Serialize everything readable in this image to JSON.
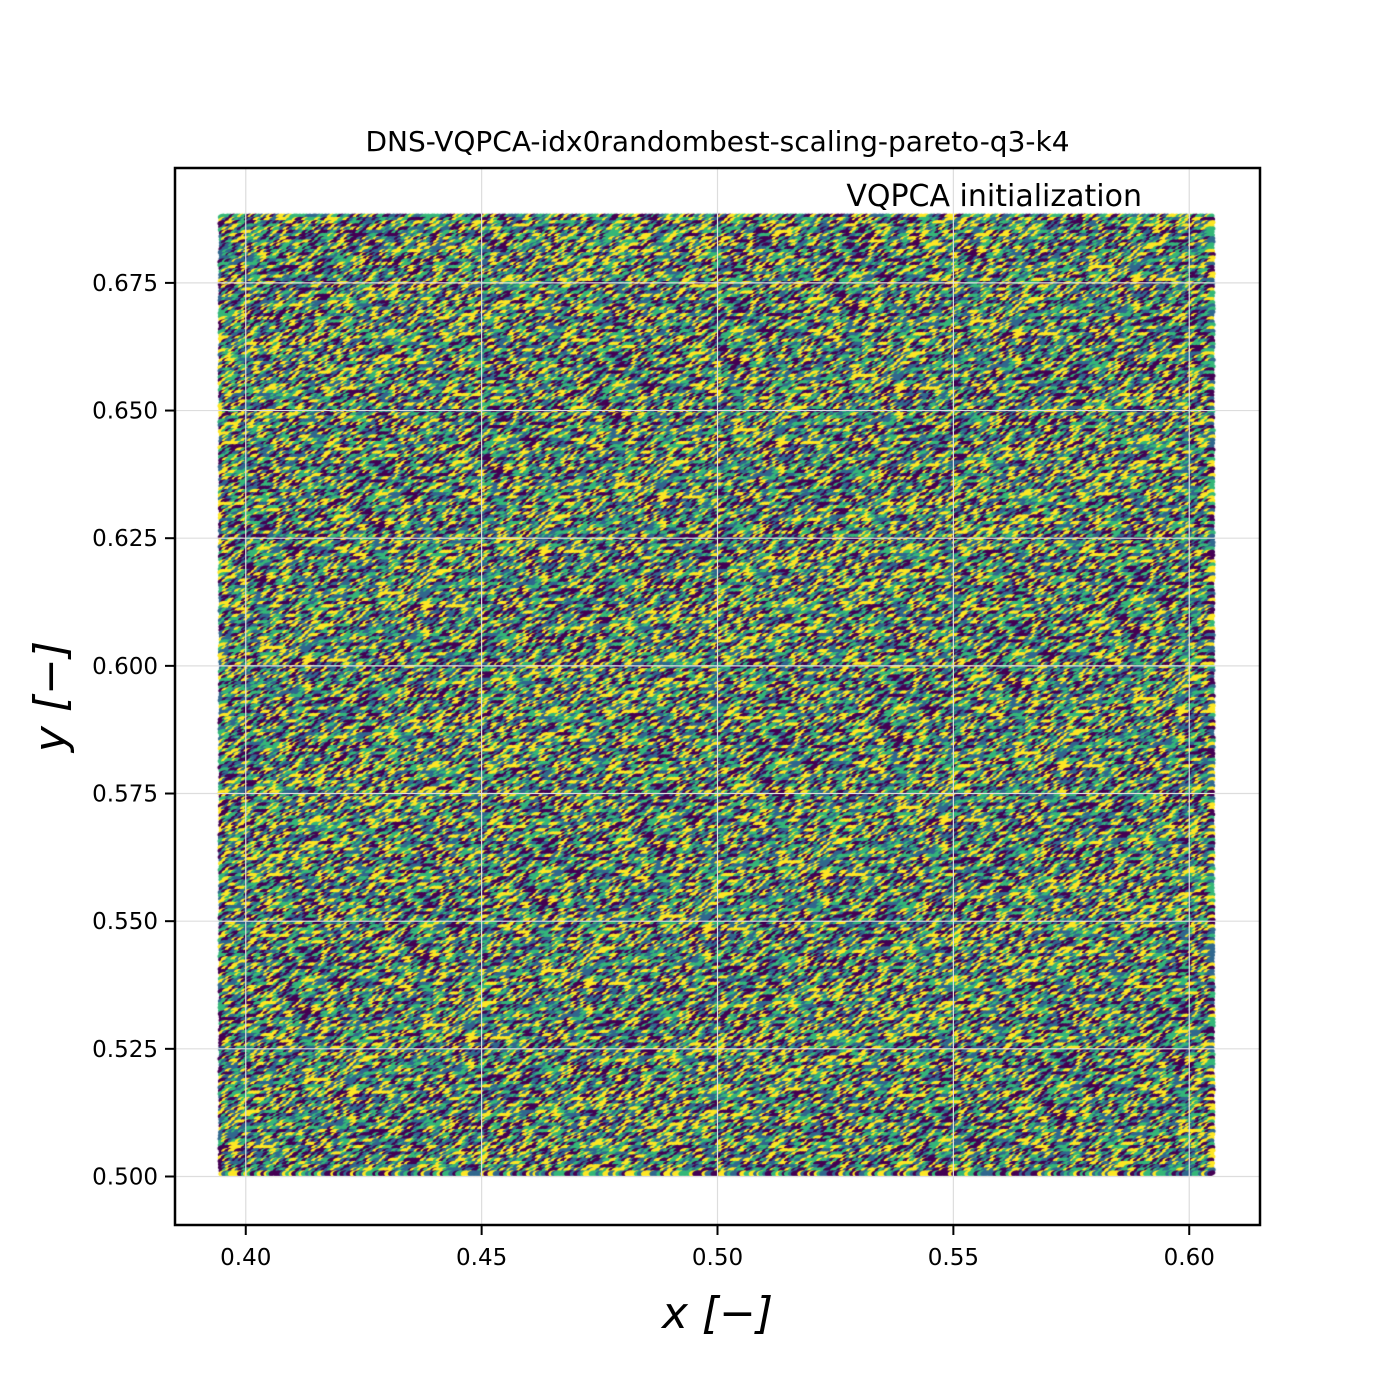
{
  "chart_data": {
    "type": "scatter",
    "title": "DNS-VQPCA-idx0randombest-scaling-pareto-q3-k4",
    "annotation": "VQPCA initialization",
    "xlabel": "x [−]",
    "ylabel": "y [−]",
    "xlim": [
      0.385,
      0.615
    ],
    "ylim": [
      0.4905,
      0.6975
    ],
    "x_ticks": [
      0.4,
      0.45,
      0.5,
      0.55,
      0.6
    ],
    "x_tick_labels": [
      "0.40",
      "0.45",
      "0.50",
      "0.55",
      "0.60"
    ],
    "y_ticks": [
      0.5,
      0.525,
      0.55,
      0.575,
      0.6,
      0.625,
      0.65,
      0.675
    ],
    "y_tick_labels": [
      "0.500",
      "0.525",
      "0.550",
      "0.575",
      "0.600",
      "0.625",
      "0.650",
      "0.675"
    ],
    "grid": true,
    "data_extent": {
      "x": [
        0.395,
        0.605
      ],
      "y": [
        0.5,
        0.688
      ]
    },
    "n_clusters": 4,
    "colormap": "viridis",
    "cluster_colors": [
      "#440154",
      "#31688e",
      "#35b779",
      "#fde725"
    ]
  }
}
